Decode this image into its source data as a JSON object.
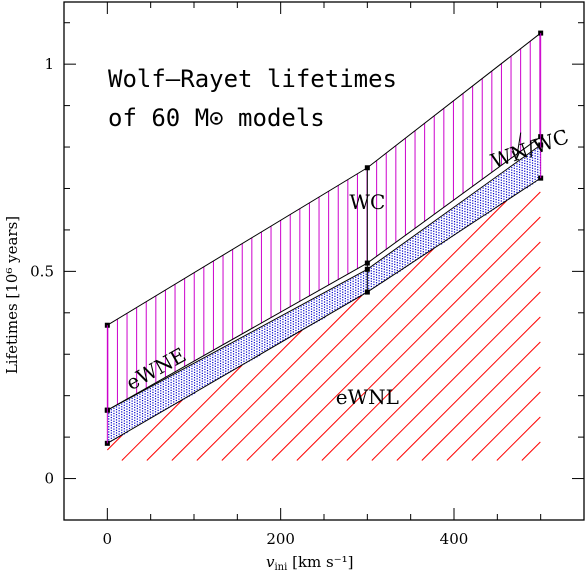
{
  "chart_data": {
    "type": "area",
    "title_lines": [
      "Wolf–Rayet lifetimes",
      "of 60 M⊙ models"
    ],
    "xlabel": {
      "main": "v",
      "sub": "ini",
      "unit": " [km s⁻¹]"
    },
    "ylabel": "Lifetimes [10⁶ years]",
    "xlim": [
      -50,
      550
    ],
    "ylim": [
      -0.1,
      1.15
    ],
    "xticks": [
      0,
      200,
      400
    ],
    "yticks": [
      0,
      0.5,
      1
    ],
    "x": [
      0,
      300,
      500
    ],
    "boundaries": [
      {
        "name": "eWNL top",
        "values": [
          0.085,
          0.45,
          0.725
        ]
      },
      {
        "name": "eWNE top",
        "values": [
          0.165,
          0.505,
          0.805
        ]
      },
      {
        "name": "WN/WC top",
        "values": [
          0.165,
          0.52,
          0.825
        ]
      },
      {
        "name": "WC top",
        "values": [
          0.37,
          0.75,
          1.075
        ]
      }
    ],
    "regions": [
      {
        "label": "eWNL",
        "from": -1,
        "to": 0,
        "color": "#ff0000",
        "pattern": "diagonal-hatch"
      },
      {
        "label": "eWNE",
        "from": 0,
        "to": 1,
        "color": "#0000cc",
        "pattern": "dots"
      },
      {
        "label": "WN/WC",
        "from": 1,
        "to": 2,
        "color": "#000000",
        "pattern": "none"
      },
      {
        "label": "WC",
        "from": 2,
        "to": 3,
        "color": "#cc00cc",
        "pattern": "vertical-hatch"
      }
    ],
    "region_labels": [
      {
        "text": "WC",
        "x": 300,
        "y": 0.65
      },
      {
        "text": "eWNE",
        "x": 60,
        "y": 0.25,
        "angle": -29
      },
      {
        "text": "eWNL",
        "x": 300,
        "y": 0.18
      },
      {
        "text": "WN/WC",
        "x": 490,
        "y": 0.78,
        "angle": -19
      }
    ],
    "grid": false,
    "legend": "none"
  }
}
